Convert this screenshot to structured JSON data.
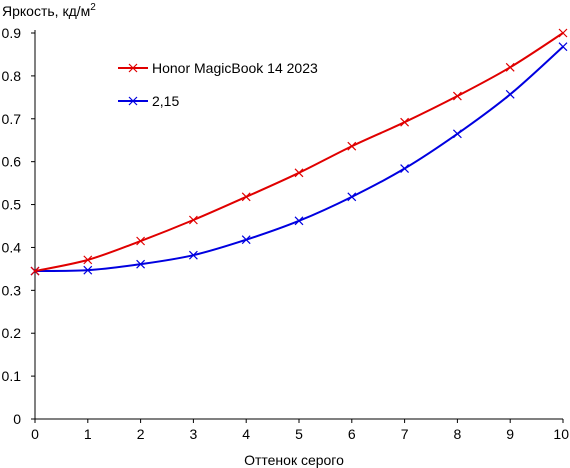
{
  "chart_data": {
    "type": "line",
    "title": "",
    "ylabel": "Яркость, кд/м",
    "ylabel_sup": "2",
    "xlabel": "Оттенок серого",
    "xlim": [
      0,
      10
    ],
    "ylim": [
      0,
      0.9
    ],
    "xticks": [
      0,
      1,
      2,
      3,
      4,
      5,
      6,
      7,
      8,
      9,
      10
    ],
    "yticks": [
      0,
      0.1,
      0.2,
      0.3,
      0.4,
      0.5,
      0.6,
      0.7,
      0.8,
      0.9
    ],
    "grid": false,
    "legend_position": "top-left",
    "x": [
      0,
      1,
      2,
      3,
      4,
      5,
      6,
      7,
      8,
      9,
      10
    ],
    "series": [
      {
        "name": "Honor MagicBook 14 2023",
        "color": "#e00000",
        "marker": "x",
        "values": [
          0.345,
          0.371,
          0.415,
          0.464,
          0.518,
          0.574,
          0.636,
          0.692,
          0.753,
          0.82,
          0.9
        ]
      },
      {
        "name": "2,15",
        "color": "#0000e0",
        "marker": "x",
        "values": [
          0.345,
          0.347,
          0.361,
          0.382,
          0.418,
          0.462,
          0.518,
          0.584,
          0.665,
          0.757,
          0.868
        ]
      }
    ]
  }
}
